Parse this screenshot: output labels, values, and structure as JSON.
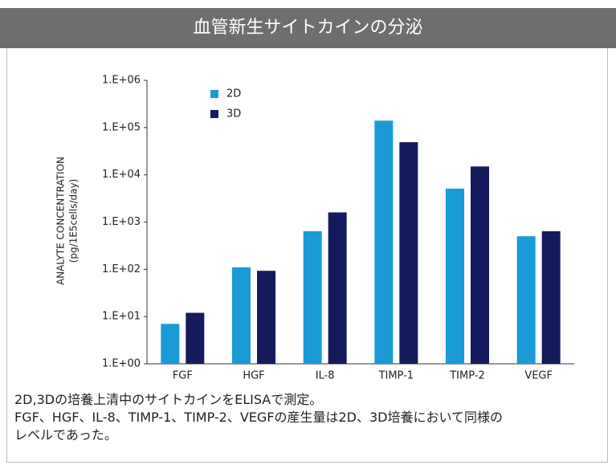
{
  "chart_data": {
    "type": "bar",
    "title": "血管新生サイトカインの分泌",
    "y_label": [
      "ANALYTE CONCENTRATION",
      "(pg/1E5cells/day)"
    ],
    "categories": [
      "FGF",
      "HGF",
      "IL-8",
      "TIMP-1",
      "TIMP-2",
      "VEGF"
    ],
    "series": [
      {
        "name": "2D",
        "color": "#1a9ad6",
        "values": [
          7,
          110,
          640,
          140000,
          5100,
          500
        ]
      },
      {
        "name": "3D",
        "color": "#141a5c",
        "values": [
          12,
          93,
          1600,
          49000,
          15000,
          640
        ]
      }
    ],
    "ylim": [
      1,
      1000000
    ],
    "yticks": [
      {
        "value": 1,
        "label": "1.E+00"
      },
      {
        "value": 10,
        "label": "1.E+01"
      },
      {
        "value": 100,
        "label": "1.E+02"
      },
      {
        "value": 1000,
        "label": "1.E+03"
      },
      {
        "value": 10000,
        "label": "1.E+04"
      },
      {
        "value": 100000,
        "label": "1.E+05"
      },
      {
        "value": 1000000,
        "label": "1.E+06"
      }
    ],
    "log_scale": true,
    "grid": false,
    "legend": "upper-left",
    "caption": [
      "2D,3Dの培養上清中のサイトカインをELISAで測定。",
      "FGF、HGF、IL-8、TIMP-1、TIMP-2、VEGFの産生量は2D、3D培養において同様の",
      "レベルであった。"
    ]
  }
}
